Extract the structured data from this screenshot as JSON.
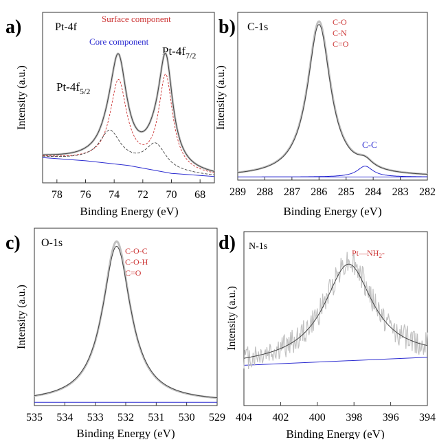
{
  "figure": {
    "colors": {
      "frame": "#333333",
      "red": "#cc3333",
      "blue": "#2a2ad0",
      "data_gray": "#c0c0c0",
      "fit": "#444444"
    }
  },
  "chart_data": [
    {
      "panel_label": "a)",
      "title": "Pt-4f",
      "type": "line",
      "xlabel": "Binding Energy (eV)",
      "ylabel": "Intensity (a.u.)",
      "xlim": [
        79,
        67
      ],
      "xticks": [
        78,
        76,
        74,
        72,
        70,
        68
      ],
      "ylim": [
        0,
        1.08
      ],
      "annotations": {
        "surface": "Surface component",
        "core": "Core component",
        "peak_left": "Pt-4f",
        "peak_left_sub": "5/2",
        "peak_right": "Pt-4f",
        "peak_right_sub": "7/2"
      },
      "baseline": [
        [
          79,
          0.16
        ],
        [
          76,
          0.14
        ],
        [
          73,
          0.11
        ],
        [
          70,
          0.06
        ],
        [
          67,
          0.04
        ]
      ],
      "series": [
        {
          "role": "data",
          "peaks": [
            {
              "center": 73.7,
              "height": 0.6,
              "width": 0.7
            },
            {
              "center": 70.4,
              "height": 0.66,
              "width": 0.6
            },
            {
              "center": 74.3,
              "height": 0.1,
              "width": 0.9
            },
            {
              "center": 71.1,
              "height": 0.1,
              "width": 0.9
            }
          ]
        },
        {
          "role": "fit",
          "peaks": [
            {
              "center": 73.7,
              "height": 0.6,
              "width": 0.7
            },
            {
              "center": 70.4,
              "height": 0.66,
              "width": 0.6
            },
            {
              "center": 74.3,
              "height": 0.1,
              "width": 0.9
            },
            {
              "center": 71.1,
              "height": 0.1,
              "width": 0.9
            }
          ]
        },
        {
          "role": "surface-component",
          "peaks": [
            {
              "center": 73.7,
              "height": 0.52,
              "width": 0.7
            },
            {
              "center": 70.4,
              "height": 0.6,
              "width": 0.6
            }
          ]
        },
        {
          "role": "core-component",
          "peaks": [
            {
              "center": 74.3,
              "height": 0.2,
              "width": 0.9
            },
            {
              "center": 71.1,
              "height": 0.16,
              "width": 0.9
            }
          ]
        }
      ]
    },
    {
      "panel_label": "b)",
      "title": "C-1s",
      "type": "line",
      "xlabel": "Binding Energy (eV)",
      "ylabel": "Intensity (a.u.)",
      "xlim": [
        289,
        282
      ],
      "xticks": [
        289,
        288,
        287,
        286,
        285,
        284,
        283,
        282
      ],
      "ylim": [
        0,
        1.08
      ],
      "annotations": {
        "lines": [
          "C-O",
          "C-N",
          "C=O"
        ],
        "minor": "C-C"
      },
      "baseline": [
        [
          289,
          0.02
        ],
        [
          282,
          0.02
        ]
      ],
      "series": [
        {
          "role": "data",
          "peaks": [
            {
              "center": 286.0,
              "height": 1.0,
              "width": 0.52
            },
            {
              "center": 284.3,
              "height": 0.05,
              "width": 0.35
            }
          ]
        },
        {
          "role": "fit",
          "peaks": [
            {
              "center": 286.0,
              "height": 0.98,
              "width": 0.52
            },
            {
              "center": 284.3,
              "height": 0.05,
              "width": 0.35
            }
          ]
        },
        {
          "role": "minor-component",
          "peaks": [
            {
              "center": 284.3,
              "height": 0.07,
              "width": 0.35
            }
          ]
        }
      ]
    },
    {
      "panel_label": "c)",
      "title": "O-1s",
      "type": "line",
      "xlabel": "Binding Energy (eV)",
      "ylabel": "Intensity (a.u.)",
      "xlim": [
        535,
        529
      ],
      "xticks": [
        535,
        534,
        533,
        532,
        531,
        530,
        529
      ],
      "ylim": [
        0,
        1.08
      ],
      "annotations": {
        "lines": [
          "C-O-C",
          "C-O-H",
          "C=O"
        ]
      },
      "baseline": [
        [
          535,
          0.02
        ],
        [
          529,
          0.02
        ]
      ],
      "series": [
        {
          "role": "data",
          "peaks": [
            {
              "center": 532.3,
              "height": 0.98,
              "width": 0.55
            }
          ]
        },
        {
          "role": "fit",
          "peaks": [
            {
              "center": 532.3,
              "height": 0.95,
              "width": 0.57
            }
          ]
        }
      ]
    },
    {
      "panel_label": "d)",
      "title": "N-1s",
      "type": "line",
      "xlabel": "Binding Energy (eV)",
      "ylabel": "Intensity (a.u.)",
      "xlim": [
        404,
        394
      ],
      "xticks": [
        404,
        402,
        400,
        398,
        396,
        394
      ],
      "ylim": [
        0,
        1.08
      ],
      "annotations": {
        "label": "Pt—NH",
        "label_sub": "2"
      },
      "baseline": [
        [
          404,
          0.25
        ],
        [
          394,
          0.3
        ]
      ],
      "series": [
        {
          "role": "data",
          "peaks": [
            {
              "center": 398.3,
              "height": 0.62,
              "width": 1.6
            }
          ],
          "noise": 0.08
        },
        {
          "role": "fit",
          "peaks": [
            {
              "center": 398.3,
              "height": 0.6,
              "width": 1.6
            }
          ]
        }
      ]
    }
  ]
}
